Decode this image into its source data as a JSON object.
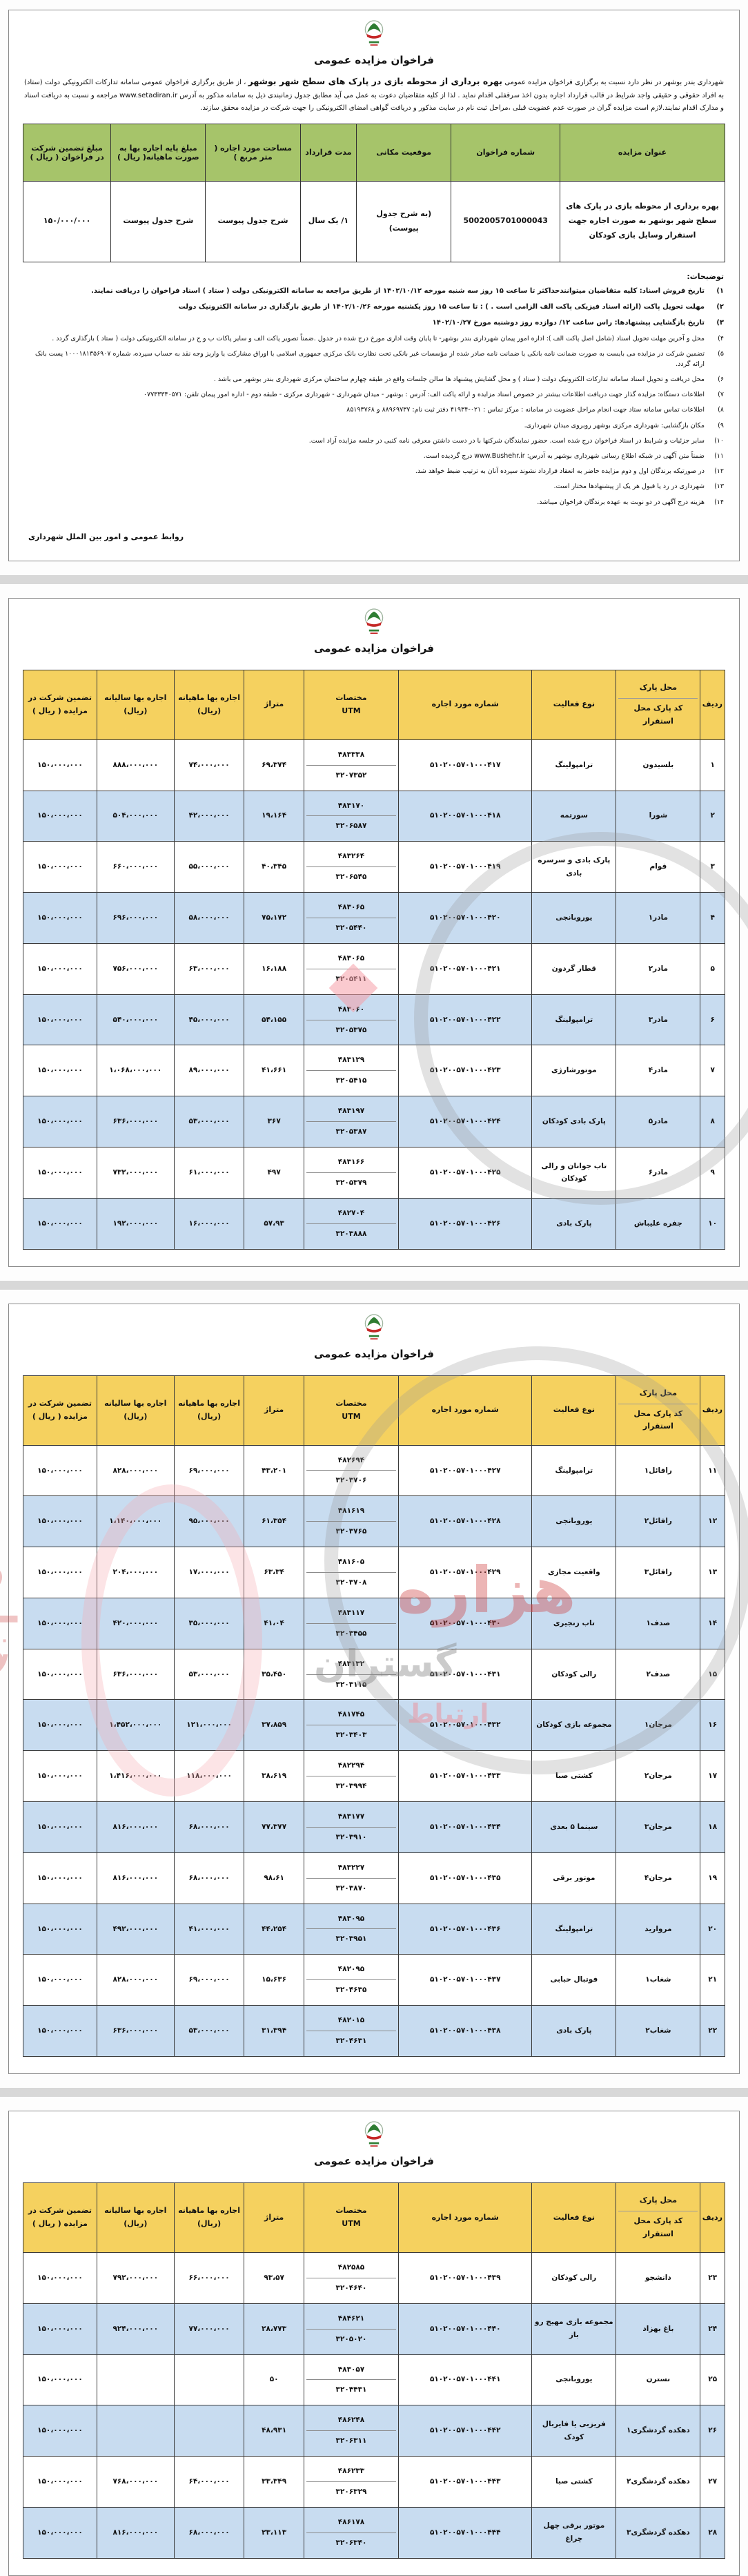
{
  "common": {
    "title": "فراخوان مزایده عمومی"
  },
  "page1": {
    "intro": {
      "pre": "شهرداری بندر بوشهر در نظر دارد نسبت به برگزاری فراخوان مزایده عمومی ",
      "bold": "بهره برداری از محوطه بازی در پارک های سطح شهر بوشهر",
      "post": " ، از طریق برگزاری فراخوان عمومی سامانه تدارکات الکترونیکی دولت (ستاد) به افراد حقوقی و حقیقی واجد شرایط در قالب قرارداد اجاره بدون اخذ سرقفلی اقدام نماید . لذا از کلیه متقاضیان دعوت به عمل می آید مطابق جدول زمانبندی ذیل به سامانه مذکور به آدرس www.setadiran.ir مراجعه و نسبت به دریافت اسناد و مدارک اقدام نمایند.لازم است مزایده گران در صورت عدم عضویت قبلی ،مراحل ثبت نام در سایت مذکور و دریافت گواهی امضای الکترونیکی را جهت شرکت در مزایده محقق سازند."
    },
    "table": {
      "headers": [
        "عنوان مزایده",
        "شماره فراخوان",
        "موقعیت مکانی",
        "مدت قرارداد",
        "مساحت مورد اجاره ( متر مربع )",
        "مبلغ پایه اجاره بها به صورت ماهیانه( ریال )",
        "مبلغ تضمین شرکت در فراخوان ( ریال )"
      ],
      "row": [
        "بهره برداری از محوطه بازی در پارک های سطح شهر بوشهر به صورت اجاره جهت استقرار وسایل بازی کودکان",
        "5002005701000043",
        "(به شرح جدول پیوست)",
        "۱/ یک سال",
        "شرح جدول پیوست",
        "شرح جدول پیوست",
        "۱۵۰/۰۰۰/۰۰۰"
      ]
    },
    "notes_title": "توضیحات:",
    "notes": [
      {
        "num": "۱)",
        "bold": true,
        "text": "تاریخ فروش اسناد: کلیه متقاضیان میتوانندحداکثر تا ساعت ۱۵ روز سه شنبه مورخه ۱۴۰۲/۱۰/۱۲ از طریق مراجعه به سامانه الکترونیکی دولت ( ستاد ) اسناد فراخوان را دریافت نمایند."
      },
      {
        "num": "۲)",
        "bold": true,
        "text": "مهلت تحویل پاکت (ارائه اسناد فیزیکی پاکت الف الزامی است . ) : تا ساعت ۱۵ روز یکشنبه مورخه ۱۴۰۲/۱۰/۲۶ از طریق بارگذاری در سامانه الکترونیک دولت"
      },
      {
        "num": "۳)",
        "bold": true,
        "text": "تاریخ بازگشایی پیشنهادها: راس ساعت ۱۲/ دوازده روز دوشنبه مورخ ۱۴۰۲/۱۰/۲۷"
      },
      {
        "num": "۴)",
        "bold": false,
        "text": "محل و آخرین مهلت تحویل اسناد (شامل اصل پاکت الف ): اداره امور پیمان شهرداری بندر بوشهر- تا پایان وقت اداری مورخ درج شده در جدول .ضمناً تصویر پاکت الف و سایر پاکات ب و ج در سامانه الکترونیکی دولت ( ستاد ) بارگذاری گردد ."
      },
      {
        "num": "۵)",
        "bold": false,
        "text": "تضمین شرکت در مزایده می بایست به صورت ضمانت نامه بانکی یا ضمانت نامه صادر شده از مؤسسات غیر بانکی تحت نظارت بانک مرکزی جمهوری اسلامی یا اوراق مشارکت یا واریز وجه نقد به حساب سپرده، شماره ۱۰۰۰۱۸۱۳۵۶۹۰۷ پست بانک ارائه گردد."
      },
      {
        "num": "۶)",
        "bold": false,
        "text": "محل دریافت و تحویل اسناد سامانه تدارکات الکترونیک دولت ( ستاد ) و محل گشایش پیشنهاد ها سالن جلسات واقع در طبقه چهارم ساختمان مرکزی شهرداری بندر بوشهر می باشد ."
      },
      {
        "num": "۷)",
        "bold": false,
        "text": "اطلاعات دستگاه: مزایده گذار جهت دریافت اطلاعات بیشتر در خصوص اسناد مزایده و ارائه پاکت الف: آدرس : بوشهر - میدان شهرداری - شهرداری مرکزی - طبقه دوم - اداره امور پیمان تلفن: ۰۷۷۳۳۳۴۰۵۷۱"
      },
      {
        "num": "۸)",
        "bold": false,
        "text": "اطلاعات تماس سامانه ستاد جهت انجام مراحل عضویت در سامانه : مرکز تماس : ۰۲۱-۴۱۹۳۴   دفتر ثبت نام: ۸۸۹۶۹۷۳۷ و ۸۵۱۹۳۷۶۸"
      },
      {
        "num": "۹)",
        "bold": false,
        "text": "مکان بازگشایی: شهرداری مرکزی بوشهر روبروی میدان شهرداری."
      },
      {
        "num": "۱۰)",
        "bold": false,
        "text": "سایر جزئیات و شرایط در اسناد فراخوان درج شده است. حضور نمایندگان شرکتها با در دست داشتن معرفی نامه کتبی در جلسه مزایده آزاد است."
      },
      {
        "num": "۱۱)",
        "bold": false,
        "text": "ضمناً متن آگهی در شبکه اطلاع رسانی شهرداری بوشهر به آدرس: www.Bushehr.ir درج گردیده است."
      },
      {
        "num": "۱۲)",
        "bold": false,
        "text": "در صورتیکه برندگان اول و دوم مزایده حاضر به انعقاد قرارداد نشوند سپرده آنان به ترتیب ضبط خواهد شد."
      },
      {
        "num": "۱۳)",
        "bold": false,
        "text": "شهرداری در رد یا قبول هر یک از پیشنهادها مختار است."
      },
      {
        "num": "۱۴)",
        "bold": false,
        "text": "هزینه درج آگهی در دو نوبت به عهده برندگان فراخوان میباشد."
      }
    ],
    "signature": "روابط عمومی و امور بین الملل شهرداری"
  },
  "parks_table": {
    "headers": {
      "row": "ردیف",
      "park": "محل پارک",
      "park_sub": "کد پارک محل استقرار",
      "activity": "نوع فعالیت",
      "tender": "شماره مورد اجاره",
      "utm_top": "مختصات",
      "utm_bottom": "UTM",
      "area": "متراژ",
      "monthly": "اجاره بها ماهیانه (ریال)",
      "yearly": "اجاره بها سالیانه (ریال)",
      "guarantee": "تضمین شرکت در مزایده ( ریال )"
    },
    "rows": [
      {
        "no": "۱",
        "park": "بلسیدون",
        "activity": "ترامپولینگ",
        "tender": "۵۱۰۲۰۰۵۷۰۱۰۰۰۴۱۷",
        "utm_top": "۴۸۳۳۳۸",
        "utm_bottom": "۳۲۰۷۳۵۲",
        "area": "۶۹،۳۷۴",
        "monthly": "۷۴،۰۰۰،۰۰۰",
        "yearly": "۸۸۸،۰۰۰،۰۰۰",
        "guarantee": "۱۵۰،۰۰۰،۰۰۰"
      },
      {
        "no": "۲",
        "park": "شورا",
        "activity": "سورتمه",
        "tender": "۵۱۰۲۰۰۵۷۰۱۰۰۰۴۱۸",
        "utm_top": "۴۸۳۱۷۰",
        "utm_bottom": "۳۲۰۶۵۸۷",
        "area": "۱۹،۱۶۴",
        "monthly": "۴۲،۰۰۰،۰۰۰",
        "yearly": "۵۰۴،۰۰۰،۰۰۰",
        "guarantee": "۱۵۰،۰۰۰،۰۰۰"
      },
      {
        "no": "۳",
        "park": "قوام",
        "activity": "پارک بادی و سرسره بادی",
        "tender": "۵۱۰۲۰۰۵۷۰۱۰۰۰۴۱۹",
        "utm_top": "۴۸۳۲۶۴",
        "utm_bottom": "۳۲۰۶۵۴۵",
        "area": "۴۰،۳۴۵",
        "monthly": "۵۵،۰۰۰،۰۰۰",
        "yearly": "۶۶۰،۰۰۰،۰۰۰",
        "guarantee": "۱۵۰،۰۰۰،۰۰۰"
      },
      {
        "no": "۴",
        "park": "مادر۱",
        "activity": "یوروبانجی",
        "tender": "۵۱۰۲۰۰۵۷۰۱۰۰۰۴۲۰",
        "utm_top": "۴۸۳۰۶۵",
        "utm_bottom": "۳۲۰۵۴۴۰",
        "area": "۷۵،۱۷۲",
        "monthly": "۵۸،۰۰۰،۰۰۰",
        "yearly": "۶۹۶،۰۰۰،۰۰۰",
        "guarantee": "۱۵۰،۰۰۰،۰۰۰"
      },
      {
        "no": "۵",
        "park": "مادر۲",
        "activity": "قطار گردون",
        "tender": "۵۱۰۲۰۰۵۷۰۱۰۰۰۴۲۱",
        "utm_top": "۴۸۳۰۶۵",
        "utm_bottom": "۳۲۰۵۴۱۱",
        "area": "۱۶،۱۸۸",
        "monthly": "۶۳،۰۰۰،۰۰۰",
        "yearly": "۷۵۶،۰۰۰،۰۰۰",
        "guarantee": "۱۵۰،۰۰۰،۰۰۰"
      },
      {
        "no": "۶",
        "park": "مادر۳",
        "activity": "ترامپولینگ",
        "tender": "۵۱۰۲۰۰۵۷۰۱۰۰۰۴۲۲",
        "utm_top": "۴۸۳۰۶۰",
        "utm_bottom": "۳۲۰۵۳۷۵",
        "area": "۵۴،۱۵۵",
        "monthly": "۴۵،۰۰۰،۰۰۰",
        "yearly": "۵۴۰،۰۰۰،۰۰۰",
        "guarantee": "۱۵۰،۰۰۰،۰۰۰"
      },
      {
        "no": "۷",
        "park": "مادر۴",
        "activity": "موتورشارژی",
        "tender": "۵۱۰۲۰۰۵۷۰۱۰۰۰۴۲۳",
        "utm_top": "۴۸۳۱۲۹",
        "utm_bottom": "۳۲۰۵۴۱۵",
        "area": "۴۱،۶۶۱",
        "monthly": "۸۹،۰۰۰،۰۰۰",
        "yearly": "۱،۰۶۸،۰۰۰،۰۰۰",
        "guarantee": "۱۵۰،۰۰۰،۰۰۰"
      },
      {
        "no": "۸",
        "park": "مادر۵",
        "activity": "پارک بادی کودکان",
        "tender": "۵۱۰۲۰۰۵۷۰۱۰۰۰۴۲۴",
        "utm_top": "۴۸۳۱۹۷",
        "utm_bottom": "۳۲۰۵۳۸۷",
        "area": "۳۶۷",
        "monthly": "۵۳،۰۰۰،۰۰۰",
        "yearly": "۶۳۶،۰۰۰،۰۰۰",
        "guarantee": "۱۵۰،۰۰۰،۰۰۰"
      },
      {
        "no": "۹",
        "park": "مادر۶",
        "activity": "تاب جوانان و رالی کودکان",
        "tender": "۵۱۰۲۰۰۵۷۰۱۰۰۰۴۲۵",
        "utm_top": "۴۸۳۱۶۶",
        "utm_bottom": "۳۲۰۵۳۷۹",
        "area": "۴۹۷",
        "monthly": "۶۱،۰۰۰،۰۰۰",
        "yearly": "۷۳۲،۰۰۰،۰۰۰",
        "guarantee": "۱۵۰،۰۰۰،۰۰۰"
      },
      {
        "no": "۱۰",
        "park": "جفره علیباش",
        "activity": "پارک بادی",
        "tender": "۵۱۰۲۰۰۵۷۰۱۰۰۰۴۲۶",
        "utm_top": "۴۸۲۷۰۴",
        "utm_bottom": "۳۲۰۳۸۸۸",
        "area": "۵۷،۹۳",
        "monthly": "۱۶،۰۰۰،۰۰۰",
        "yearly": "۱۹۲،۰۰۰،۰۰۰",
        "guarantee": "۱۵۰،۰۰۰،۰۰۰"
      },
      {
        "no": "۱۱",
        "park": "رافائل۱",
        "activity": "ترامپولینگ",
        "tender": "۵۱۰۲۰۰۵۷۰۱۰۰۰۴۲۷",
        "utm_top": "۴۸۲۶۹۴",
        "utm_bottom": "۳۲۰۳۷۰۶",
        "area": "۴۳،۲۰۱",
        "monthly": "۶۹،۰۰۰،۰۰۰",
        "yearly": "۸۲۸،۰۰۰،۰۰۰",
        "guarantee": "۱۵۰،۰۰۰،۰۰۰"
      },
      {
        "no": "۱۲",
        "park": "رافائل۲",
        "activity": "یوروبانجی",
        "tender": "۵۱۰۲۰۰۵۷۰۱۰۰۰۴۲۸",
        "utm_top": "۴۸۱۶۱۹",
        "utm_bottom": "۳۲۰۳۷۶۵",
        "area": "۶۱،۳۵۴",
        "monthly": "۹۵،۰۰۰،۰۰۰",
        "yearly": "۱،۱۴۰،۰۰۰،۰۰۰",
        "guarantee": "۱۵۰،۰۰۰،۰۰۰"
      },
      {
        "no": "۱۳",
        "park": "رافائل۳",
        "activity": "واقعیت مجازی",
        "tender": "۵۱۰۲۰۰۵۷۰۱۰۰۰۴۲۹",
        "utm_top": "۴۸۱۶۰۵",
        "utm_bottom": "۳۲۰۳۷۰۸",
        "area": "۶۳،۳۴",
        "monthly": "۱۷،۰۰۰،۰۰۰",
        "yearly": "۲۰۴،۰۰۰،۰۰۰",
        "guarantee": "۱۵۰،۰۰۰،۰۰۰"
      },
      {
        "no": "۱۴",
        "park": "صدف۱",
        "activity": "تاب زنجیری",
        "tender": "۵۱۰۲۰۰۵۷۰۱۰۰۰۴۳۰",
        "utm_top": "۴۸۳۱۱۷",
        "utm_bottom": "۳۲۰۳۴۵۵",
        "area": "۴۱،۰۴",
        "monthly": "۳۵،۰۰۰،۰۰۰",
        "yearly": "۴۲۰،۰۰۰،۰۰۰",
        "guarantee": "۱۵۰،۰۰۰،۰۰۰"
      },
      {
        "no": "۱۵",
        "park": "صدف۲",
        "activity": "رالی کودکان",
        "tender": "۵۱۰۲۰۰۵۷۰۱۰۰۰۴۳۱",
        "utm_top": "۴۸۳۱۳۲",
        "utm_bottom": "۳۲۰۳۱۱۵",
        "area": "۳۵،۴۵۰",
        "monthly": "۵۳،۰۰۰،۰۰۰",
        "yearly": "۶۳۶،۰۰۰،۰۰۰",
        "guarantee": "۱۵۰،۰۰۰،۰۰۰"
      },
      {
        "no": "۱۶",
        "park": "مرجان۱",
        "activity": "مجموعه بازی کودکان",
        "tender": "۵۱۰۲۰۰۵۷۰۱۰۰۰۴۳۲",
        "utm_top": "۴۸۱۷۴۵",
        "utm_bottom": "۳۲۰۳۴۰۳",
        "area": "۳۷،۸۵۹",
        "monthly": "۱۲۱،۰۰۰،۰۰۰",
        "yearly": "۱،۴۵۲،۰۰۰،۰۰۰",
        "guarantee": "۱۵۰،۰۰۰،۰۰۰"
      },
      {
        "no": "۱۷",
        "park": "مرجان۲",
        "activity": "کشتی صبا",
        "tender": "۵۱۰۲۰۰۵۷۰۱۰۰۰۴۳۳",
        "utm_top": "۴۸۲۲۹۴",
        "utm_bottom": "۳۲۰۳۹۹۴",
        "area": "۳۸،۶۱۹",
        "monthly": "۱۱۸،۰۰۰،۰۰۰",
        "yearly": "۱،۴۱۶،۰۰۰،۰۰۰",
        "guarantee": "۱۵۰،۰۰۰،۰۰۰"
      },
      {
        "no": "۱۸",
        "park": "مرجان۳",
        "activity": "سینما ۵ بعدی",
        "tender": "۵۱۰۲۰۰۵۷۰۱۰۰۰۴۳۴",
        "utm_top": "۴۸۳۱۷۷",
        "utm_bottom": "۳۲۰۳۹۱۰",
        "area": "۷۷،۳۷۷",
        "monthly": "۶۸،۰۰۰،۰۰۰",
        "yearly": "۸۱۶،۰۰۰،۰۰۰",
        "guarantee": "۱۵۰،۰۰۰،۰۰۰"
      },
      {
        "no": "۱۹",
        "park": "مرجان۴",
        "activity": "موتور برقی",
        "tender": "۵۱۰۲۰۰۵۷۰۱۰۰۰۴۳۵",
        "utm_top": "۴۸۳۲۲۷",
        "utm_bottom": "۳۲۰۳۸۷۰",
        "area": "۹۸،۶۱",
        "monthly": "۶۸،۰۰۰،۰۰۰",
        "yearly": "۸۱۶،۰۰۰،۰۰۰",
        "guarantee": "۱۵۰،۰۰۰،۰۰۰"
      },
      {
        "no": "۲۰",
        "park": "مروارید",
        "activity": "ترامپولینگ",
        "tender": "۵۱۰۲۰۰۵۷۰۱۰۰۰۴۳۶",
        "utm_top": "۴۸۳۰۹۵",
        "utm_bottom": "۳۲۰۳۹۵۱",
        "area": "۴۴،۲۵۴",
        "monthly": "۴۱،۰۰۰،۰۰۰",
        "yearly": "۴۹۲،۰۰۰،۰۰۰",
        "guarantee": "۱۵۰،۰۰۰،۰۰۰"
      },
      {
        "no": "۲۱",
        "park": "شغاب۱",
        "activity": "فوتبال حبابی",
        "tender": "۵۱۰۲۰۰۵۷۰۱۰۰۰۴۳۷",
        "utm_top": "۴۸۲۰۹۵",
        "utm_bottom": "۳۲۰۴۶۳۵",
        "area": "۱۵،۶۳۶",
        "monthly": "۶۹،۰۰۰،۰۰۰",
        "yearly": "۸۲۸،۰۰۰،۰۰۰",
        "guarantee": "۱۵۰،۰۰۰،۰۰۰"
      },
      {
        "no": "۲۲",
        "park": "شغاب۲",
        "activity": "پارک بادی",
        "tender": "۵۱۰۲۰۰۵۷۰۱۰۰۰۴۳۸",
        "utm_top": "۴۸۲۰۱۵",
        "utm_bottom": "۳۲۰۴۶۳۱",
        "area": "۳۱،۳۹۴",
        "monthly": "۵۳،۰۰۰،۰۰۰",
        "yearly": "۶۳۶،۰۰۰،۰۰۰",
        "guarantee": "۱۵۰،۰۰۰،۰۰۰"
      },
      {
        "no": "۲۳",
        "park": "دانشجو",
        "activity": "رالی کودکان",
        "tender": "۵۱۰۲۰۰۵۷۰۱۰۰۰۴۳۹",
        "utm_top": "۴۸۲۵۸۵",
        "utm_bottom": "۳۲۰۴۶۴۰",
        "area": "۹۳،۵۷",
        "monthly": "۶۶،۰۰۰،۰۰۰",
        "yearly": "۷۹۲،۰۰۰،۰۰۰",
        "guarantee": "۱۵۰،۰۰۰،۰۰۰"
      },
      {
        "no": "۲۴",
        "park": "باغ بهزاد",
        "activity": "مجموعه بازی مهیج رو باز",
        "tender": "۵۱۰۲۰۰۵۷۰۱۰۰۰۴۴۰",
        "utm_top": "۴۸۴۶۲۱",
        "utm_bottom": "۳۲۰۵۰۲۰",
        "area": "۲۸،۷۷۳",
        "monthly": "۷۷،۰۰۰،۰۰۰",
        "yearly": "۹۲۴،۰۰۰،۰۰۰",
        "guarantee": "۱۵۰،۰۰۰،۰۰۰"
      },
      {
        "no": "۲۵",
        "park": "نسترن",
        "activity": "یوروبانجی",
        "tender": "۵۱۰۲۰۰۵۷۰۱۰۰۰۴۴۱",
        "utm_top": "۴۸۳۰۵۷",
        "utm_bottom": "۳۲۰۴۴۳۱",
        "area": "۵۰",
        "monthly": "",
        "yearly": "",
        "guarantee": "۱۵۰،۰۰۰،۰۰۰"
      },
      {
        "no": "۲۶",
        "park": "دهکده گردشگری۱",
        "activity": "فریزبی یا فایربال کودک",
        "tender": "۵۱۰۲۰۰۵۷۰۱۰۰۰۴۴۲",
        "utm_top": "۴۸۶۲۴۸",
        "utm_bottom": "۳۲۰۶۳۱۱",
        "area": "۴۸،۹۳۱",
        "monthly": "",
        "yearly": "",
        "guarantee": "۱۵۰،۰۰۰،۰۰۰"
      },
      {
        "no": "۲۷",
        "park": "دهکده گردشگری۲",
        "activity": "کشتی صبا",
        "tender": "۵۱۰۲۰۰۵۷۰۱۰۰۰۴۴۳",
        "utm_top": "۴۸۶۲۳۳",
        "utm_bottom": "۳۲۰۶۳۲۹",
        "area": "۳۳،۳۴۹",
        "monthly": "۶۴،۰۰۰،۰۰۰",
        "yearly": "۷۶۸،۰۰۰،۰۰۰",
        "guarantee": "۱۵۰،۰۰۰،۰۰۰"
      },
      {
        "no": "۲۸",
        "park": "دهکده گردشگری۳",
        "activity": "موتور برقی چهل چراغ",
        "tender": "۵۱۰۲۰۰۵۷۰۱۰۰۰۴۴۴",
        "utm_top": "۴۸۶۱۷۸",
        "utm_bottom": "۳۲۰۶۳۴۰",
        "area": "۲۳،۱۱۳",
        "monthly": "۶۸،۰۰۰،۰۰۰",
        "yearly": "۸۱۶،۰۰۰،۰۰۰",
        "guarantee": "۱۵۰،۰۰۰،۰۰۰"
      }
    ]
  },
  "watermark": {
    "word1": "هزاره",
    "word2": "گستران",
    "word3": "ارتباط"
  },
  "colors": {
    "header_green": "#a6c46a",
    "header_yellow": "#f5d15f",
    "row_blue": "#c8dcf0"
  }
}
